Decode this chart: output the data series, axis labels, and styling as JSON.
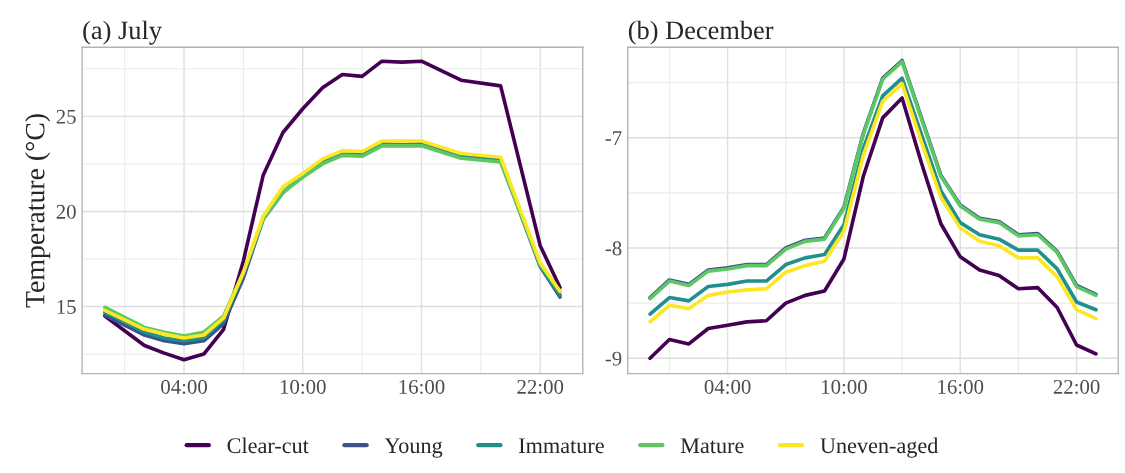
{
  "chart_data": [
    {
      "type": "line",
      "title": "(a) July",
      "ylabel": "Temperature (°C)",
      "x": [
        0,
        2,
        3,
        4,
        5,
        6,
        7,
        8,
        9,
        10,
        11,
        12,
        13,
        14,
        15,
        16,
        18,
        20,
        22,
        23
      ],
      "xlim": [
        -1.15,
        24.15
      ],
      "xticks": [
        {
          "value": 4,
          "label": "04:00"
        },
        {
          "value": 10,
          "label": "10:00"
        },
        {
          "value": 16,
          "label": "16:00"
        },
        {
          "value": 22,
          "label": "22:00"
        }
      ],
      "ylim": [
        11.47,
        28.63
      ],
      "yticks": [
        15,
        20,
        25
      ],
      "grid": true,
      "legend": "bottom",
      "line_style": "solid",
      "series": [
        {
          "name": "Clear-cut",
          "color": "#440154",
          "values": [
            14.5,
            12.95,
            12.55,
            12.2,
            12.5,
            13.8,
            17.4,
            21.9,
            24.15,
            25.4,
            26.5,
            27.2,
            27.1,
            27.9,
            27.85,
            27.9,
            26.9,
            26.6,
            18.2,
            16.0
          ]
        },
        {
          "name": "Young",
          "color": "#3b528b",
          "values": [
            14.55,
            13.5,
            13.2,
            13.05,
            13.2,
            14.1,
            16.5,
            19.6,
            21.0,
            21.9,
            22.6,
            23.0,
            23.0,
            23.55,
            23.5,
            23.55,
            22.9,
            22.7,
            17.1,
            15.5
          ]
        },
        {
          "name": "Immature",
          "color": "#21908c",
          "values": [
            14.7,
            13.65,
            13.35,
            13.2,
            13.35,
            14.3,
            16.7,
            19.6,
            21.0,
            21.85,
            22.55,
            23.0,
            22.95,
            23.5,
            23.5,
            23.5,
            22.85,
            22.65,
            17.15,
            15.6
          ]
        },
        {
          "name": "Mature",
          "color": "#5dc863",
          "values": [
            14.95,
            13.9,
            13.65,
            13.45,
            13.65,
            14.5,
            16.8,
            19.6,
            21.0,
            21.8,
            22.5,
            22.95,
            22.9,
            23.45,
            23.45,
            23.45,
            22.8,
            22.6,
            17.2,
            15.8
          ]
        },
        {
          "name": "Uneven-aged",
          "color": "#fde725",
          "values": [
            14.8,
            13.8,
            13.55,
            13.35,
            13.5,
            14.4,
            16.8,
            19.75,
            21.3,
            22.0,
            22.75,
            23.2,
            23.15,
            23.7,
            23.7,
            23.7,
            23.05,
            22.85,
            17.3,
            15.8
          ]
        }
      ]
    },
    {
      "type": "line",
      "title": "(b) December",
      "x": [
        0,
        1,
        2,
        3,
        4,
        5,
        6,
        7,
        8,
        9,
        10,
        11,
        12,
        13,
        14,
        15,
        16,
        17,
        18,
        19,
        20,
        21,
        22,
        23
      ],
      "xlim": [
        -1.15,
        24.15
      ],
      "xticks": [
        {
          "value": 4,
          "label": "04:00"
        },
        {
          "value": 10,
          "label": "10:00"
        },
        {
          "value": 16,
          "label": "16:00"
        },
        {
          "value": 22,
          "label": "22:00"
        }
      ],
      "ylim": [
        -9.14,
        -6.18
      ],
      "yticks": [
        {
          "value": -9,
          "label": "-9"
        },
        {
          "value": -8,
          "label": "-8"
        },
        {
          "value": -7,
          "label": "-7"
        }
      ],
      "grid": true,
      "line_style": "solid",
      "series": [
        {
          "name": "Clear-cut",
          "color": "#440154",
          "values": [
            -9.0,
            -8.83,
            -8.87,
            -8.73,
            -8.7,
            -8.67,
            -8.66,
            -8.5,
            -8.43,
            -8.39,
            -8.1,
            -7.35,
            -6.82,
            -6.64,
            -7.23,
            -7.78,
            -8.08,
            -8.2,
            -8.25,
            -8.37,
            -8.36,
            -8.54,
            -8.88,
            -8.96
          ]
        },
        {
          "name": "Young",
          "color": "#3b528b",
          "values": [
            -8.45,
            -8.29,
            -8.33,
            -8.2,
            -8.18,
            -8.15,
            -8.15,
            -8.0,
            -7.93,
            -7.91,
            -7.63,
            -6.96,
            -6.46,
            -6.3,
            -6.82,
            -7.34,
            -7.61,
            -7.73,
            -7.76,
            -7.88,
            -7.87,
            -8.03,
            -8.34,
            -8.42
          ]
        },
        {
          "name": "Immature",
          "color": "#21908c",
          "values": [
            -8.6,
            -8.45,
            -8.48,
            -8.35,
            -8.33,
            -8.3,
            -8.3,
            -8.15,
            -8.09,
            -8.06,
            -7.79,
            -7.1,
            -6.62,
            -6.46,
            -6.97,
            -7.48,
            -7.77,
            -7.88,
            -7.92,
            -8.02,
            -8.02,
            -8.19,
            -8.49,
            -8.56
          ]
        },
        {
          "name": "Mature",
          "color": "#5dc863",
          "values": [
            -8.46,
            -8.3,
            -8.34,
            -8.21,
            -8.19,
            -8.16,
            -8.16,
            -8.01,
            -7.94,
            -7.92,
            -7.64,
            -6.97,
            -6.47,
            -6.31,
            -6.83,
            -7.35,
            -7.62,
            -7.74,
            -7.77,
            -7.89,
            -7.88,
            -8.04,
            -8.35,
            -8.43
          ]
        },
        {
          "name": "Uneven-aged",
          "color": "#fde725",
          "values": [
            -8.67,
            -8.52,
            -8.55,
            -8.43,
            -8.4,
            -8.38,
            -8.37,
            -8.22,
            -8.16,
            -8.12,
            -7.85,
            -7.16,
            -6.67,
            -6.51,
            -7.04,
            -7.54,
            -7.82,
            -7.94,
            -7.98,
            -8.09,
            -8.09,
            -8.26,
            -8.56,
            -8.64
          ]
        }
      ]
    }
  ]
}
